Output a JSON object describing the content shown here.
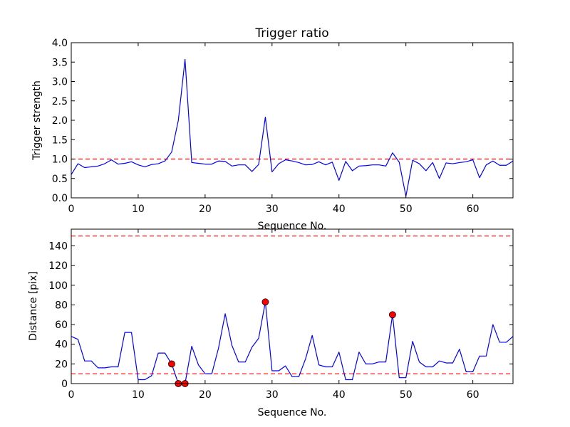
{
  "chart_data": [
    {
      "type": "line",
      "title": "Trigger ratio",
      "xlabel": "Sequence No.",
      "ylabel": "Trigger strength",
      "xlim": [
        0,
        66
      ],
      "ylim": [
        0,
        4
      ],
      "xticks": [
        "0",
        "10",
        "20",
        "30",
        "40",
        "50",
        "60"
      ],
      "yticks": [
        "0.0",
        "0.5",
        "1.0",
        "1.5",
        "2.0",
        "2.5",
        "3.0",
        "3.5",
        "4.0"
      ],
      "grid": false,
      "line_color": "#0000ff",
      "threshold": {
        "value": 1.0,
        "color": "#ff0000",
        "style": "dashed"
      },
      "series": [
        {
          "x": [
            0,
            1,
            2,
            3,
            4,
            5,
            6,
            7,
            8,
            9,
            10,
            11,
            12,
            13,
            14,
            15,
            16,
            17,
            18,
            19,
            20,
            21,
            22,
            23,
            24,
            25,
            26,
            27,
            28,
            29,
            30,
            31,
            32,
            33,
            34,
            35,
            36,
            37,
            38,
            39,
            40,
            41,
            42,
            43,
            44,
            45,
            46,
            47,
            48,
            49,
            50,
            51,
            52,
            53,
            54,
            55,
            56,
            57,
            58,
            59,
            60,
            61,
            62,
            63,
            64,
            65,
            66
          ],
          "values": [
            0.6,
            0.88,
            0.78,
            0.8,
            0.82,
            0.88,
            0.98,
            0.87,
            0.89,
            0.93,
            0.85,
            0.8,
            0.86,
            0.88,
            0.95,
            1.18,
            2.0,
            3.57,
            0.91,
            0.89,
            0.87,
            0.87,
            0.95,
            0.94,
            0.82,
            0.85,
            0.85,
            0.68,
            0.86,
            2.08,
            0.67,
            0.88,
            0.98,
            0.95,
            0.91,
            0.85,
            0.86,
            0.93,
            0.85,
            0.92,
            0.45,
            0.94,
            0.7,
            0.82,
            0.83,
            0.85,
            0.85,
            0.82,
            1.16,
            0.92,
            0.04,
            0.97,
            0.88,
            0.7,
            0.91,
            0.5,
            0.9,
            0.88,
            0.91,
            0.93,
            0.98,
            0.52,
            0.85,
            0.95,
            0.84,
            0.84,
            0.95
          ]
        }
      ]
    },
    {
      "type": "line",
      "title": "",
      "xlabel": "Sequence No.",
      "ylabel": "Distance [pix]",
      "xlim": [
        0,
        66
      ],
      "ylim": [
        0,
        157
      ],
      "xticks": [
        "0",
        "10",
        "20",
        "30",
        "40",
        "50",
        "60"
      ],
      "yticks": [
        "0",
        "20",
        "40",
        "60",
        "80",
        "100",
        "120",
        "140"
      ],
      "grid": false,
      "line_color": "#0000ff",
      "thresholds": [
        {
          "value": 150,
          "color": "#ff0000",
          "style": "dashed"
        },
        {
          "value": 10,
          "color": "#ff0000",
          "style": "dashed"
        }
      ],
      "marker_color": "#ff0000",
      "series": [
        {
          "x": [
            0,
            1,
            2,
            3,
            4,
            5,
            6,
            7,
            8,
            9,
            10,
            11,
            12,
            13,
            14,
            15,
            16,
            17,
            18,
            19,
            20,
            21,
            22,
            23,
            24,
            25,
            26,
            27,
            28,
            29,
            30,
            31,
            32,
            33,
            34,
            35,
            36,
            37,
            38,
            39,
            40,
            41,
            42,
            43,
            44,
            45,
            46,
            47,
            48,
            49,
            50,
            51,
            52,
            53,
            54,
            55,
            56,
            57,
            58,
            59,
            60,
            61,
            62,
            63,
            64,
            65,
            66
          ],
          "values": [
            48,
            45,
            23,
            23,
            16,
            16,
            17,
            17,
            52,
            52,
            4,
            4,
            8,
            31,
            31,
            20,
            0,
            0,
            38,
            19,
            10,
            10,
            36,
            71,
            39,
            22,
            22,
            37,
            46,
            83,
            13,
            13,
            18,
            7,
            7,
            25,
            49,
            19,
            17,
            17,
            32,
            4,
            4,
            32,
            20,
            20,
            22,
            22,
            70,
            6,
            6,
            43,
            22,
            17,
            17,
            23,
            21,
            21,
            35,
            12,
            12,
            28,
            28,
            60,
            42,
            42,
            48
          ]
        }
      ],
      "highlight_points": [
        {
          "x": 15,
          "y": 20
        },
        {
          "x": 16,
          "y": 0
        },
        {
          "x": 17,
          "y": 0
        },
        {
          "x": 29,
          "y": 83
        },
        {
          "x": 48,
          "y": 70
        }
      ]
    }
  ]
}
